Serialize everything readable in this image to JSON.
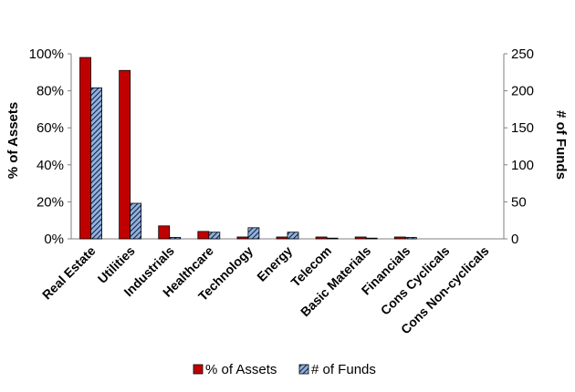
{
  "chart_data": {
    "type": "bar",
    "categories": [
      "Real Estate",
      "Utilities",
      "Industrials",
      "Healthcare",
      "Technology",
      "Energy",
      "Telecom",
      "Basic Materials",
      "Financials",
      "Cons Cyclicals",
      "Cons Non-cyclicals"
    ],
    "series": [
      {
        "name": "% of Assets",
        "axis": "left",
        "values": [
          98,
          91,
          7,
          4,
          1,
          1,
          1,
          1,
          1,
          0,
          0
        ],
        "color": "#c00000"
      },
      {
        "name": "# of Funds",
        "axis": "right",
        "values": [
          204,
          48,
          2,
          9,
          15,
          9,
          1,
          1,
          2,
          0,
          0
        ],
        "color": "#8db4e2",
        "pattern": "diagonal-hatch"
      }
    ],
    "ylabel": "% of Assets",
    "y2label": "# of Funds",
    "ylim": [
      0,
      100
    ],
    "y2lim": [
      0,
      250
    ],
    "yticks": [
      "0%",
      "20%",
      "40%",
      "60%",
      "80%",
      "100%"
    ],
    "y2ticks": [
      "0",
      "50",
      "100",
      "150",
      "200",
      "250"
    ],
    "grid": false,
    "legend_position": "bottom"
  }
}
